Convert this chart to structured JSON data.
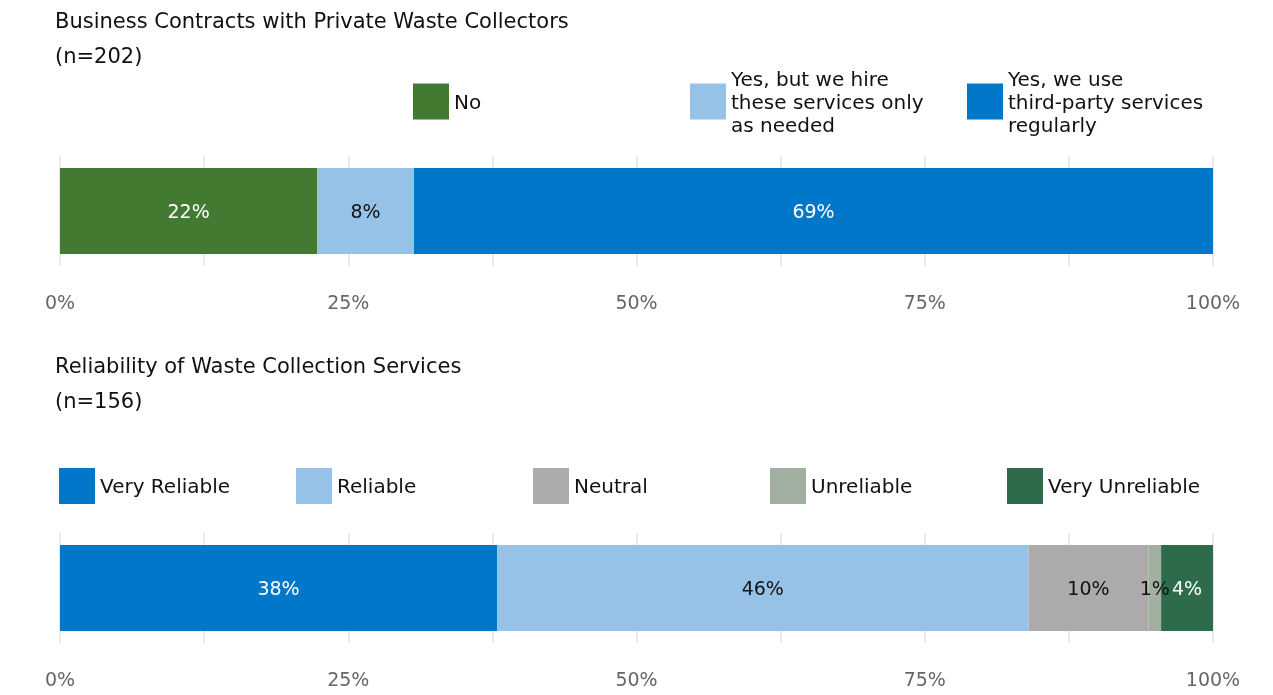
{
  "chart_data": [
    {
      "type": "bar",
      "title": "Business Contracts with Private Waste Collectors",
      "subtitle": "(n=202)",
      "orientation": "horizontal",
      "stacked": true,
      "categories": [
        null
      ],
      "series": [
        {
          "name": "No",
          "color": "#437a31",
          "values": [
            22.3
          ],
          "value_labels": [
            "22%"
          ]
        },
        {
          "name": "Yes, but we hire these services only as needed",
          "color": "#97c2e8",
          "values": [
            8.4
          ],
          "value_labels": [
            "8%"
          ]
        },
        {
          "name": "Yes, we use third-party services regularly",
          "color": "#0077c8",
          "values": [
            69.3
          ],
          "value_labels": [
            "69%"
          ]
        }
      ],
      "xlim": [
        0,
        100
      ],
      "xticks": [
        {
          "value": 0,
          "label": "0%"
        },
        {
          "value": 12.5,
          "label": null
        },
        {
          "value": 25,
          "label": "25%"
        },
        {
          "value": 37.5,
          "label": null
        },
        {
          "value": 50,
          "label": "50%"
        },
        {
          "value": 62.5,
          "label": null
        },
        {
          "value": 75,
          "label": "75%"
        },
        {
          "value": 87.5,
          "label": null
        },
        {
          "value": 100,
          "label": "100%"
        }
      ],
      "grid": "x",
      "legend": "top right"
    },
    {
      "type": "bar",
      "title": "Reliability of Waste Collection Services",
      "subtitle": "(n=156)",
      "orientation": "horizontal",
      "stacked": true,
      "categories": [
        null
      ],
      "series": [
        {
          "name": "Very Reliable",
          "color": "#0077c8",
          "values": [
            37.9
          ],
          "value_labels": [
            "38%"
          ]
        },
        {
          "name": "Reliable",
          "color": "#97c2e8",
          "values": [
            46.1
          ],
          "value_labels": [
            "46%"
          ]
        },
        {
          "name": "Neutral",
          "color": "#ababab",
          "values": [
            10.4
          ],
          "value_labels": [
            "10%"
          ]
        },
        {
          "name": "Unreliable",
          "color": "#a1b0a0",
          "values": [
            1.1
          ],
          "value_labels": [
            "1%"
          ]
        },
        {
          "name": "Very Unreliable",
          "color": "#2e6b4a",
          "values": [
            4.5
          ],
          "value_labels": [
            "4%"
          ]
        }
      ],
      "xlim": [
        0,
        100
      ],
      "xticks": [
        {
          "value": 0,
          "label": "0%"
        },
        {
          "value": 12.5,
          "label": null
        },
        {
          "value": 25,
          "label": "25%"
        },
        {
          "value": 37.5,
          "label": null
        },
        {
          "value": 50,
          "label": "50%"
        },
        {
          "value": 62.5,
          "label": null
        },
        {
          "value": 75,
          "label": "75%"
        },
        {
          "value": 87.5,
          "label": null
        },
        {
          "value": 100,
          "label": "100%"
        }
      ],
      "grid": "x",
      "legend": "top right"
    }
  ]
}
